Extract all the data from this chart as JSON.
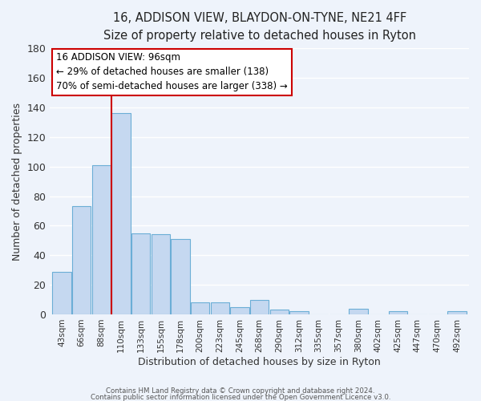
{
  "title": "16, ADDISON VIEW, BLAYDON-ON-TYNE, NE21 4FF",
  "subtitle": "Size of property relative to detached houses in Ryton",
  "xlabel": "Distribution of detached houses by size in Ryton",
  "ylabel": "Number of detached properties",
  "bar_labels": [
    "43sqm",
    "66sqm",
    "88sqm",
    "110sqm",
    "133sqm",
    "155sqm",
    "178sqm",
    "200sqm",
    "223sqm",
    "245sqm",
    "268sqm",
    "290sqm",
    "312sqm",
    "335sqm",
    "357sqm",
    "380sqm",
    "402sqm",
    "425sqm",
    "447sqm",
    "470sqm",
    "492sqm"
  ],
  "bar_values": [
    29,
    73,
    101,
    136,
    55,
    54,
    51,
    8,
    8,
    5,
    10,
    3,
    2,
    0,
    0,
    4,
    0,
    2,
    0,
    0,
    2
  ],
  "bar_color": "#c5d8f0",
  "bar_edge_color": "#6baed6",
  "background_color": "#eef3fb",
  "plot_bg_color": "#eef3fb",
  "grid_color": "#ffffff",
  "vline_x": 2.5,
  "vline_color": "#cc0000",
  "annotation_title": "16 ADDISON VIEW: 96sqm",
  "annotation_line1": "← 29% of detached houses are smaller (138)",
  "annotation_line2": "70% of semi-detached houses are larger (338) →",
  "annotation_box_color": "white",
  "annotation_box_edge": "#cc0000",
  "ylim": [
    0,
    180
  ],
  "yticks": [
    0,
    20,
    40,
    60,
    80,
    100,
    120,
    140,
    160,
    180
  ],
  "footer_line1": "Contains HM Land Registry data © Crown copyright and database right 2024.",
  "footer_line2": "Contains public sector information licensed under the Open Government Licence v3.0."
}
